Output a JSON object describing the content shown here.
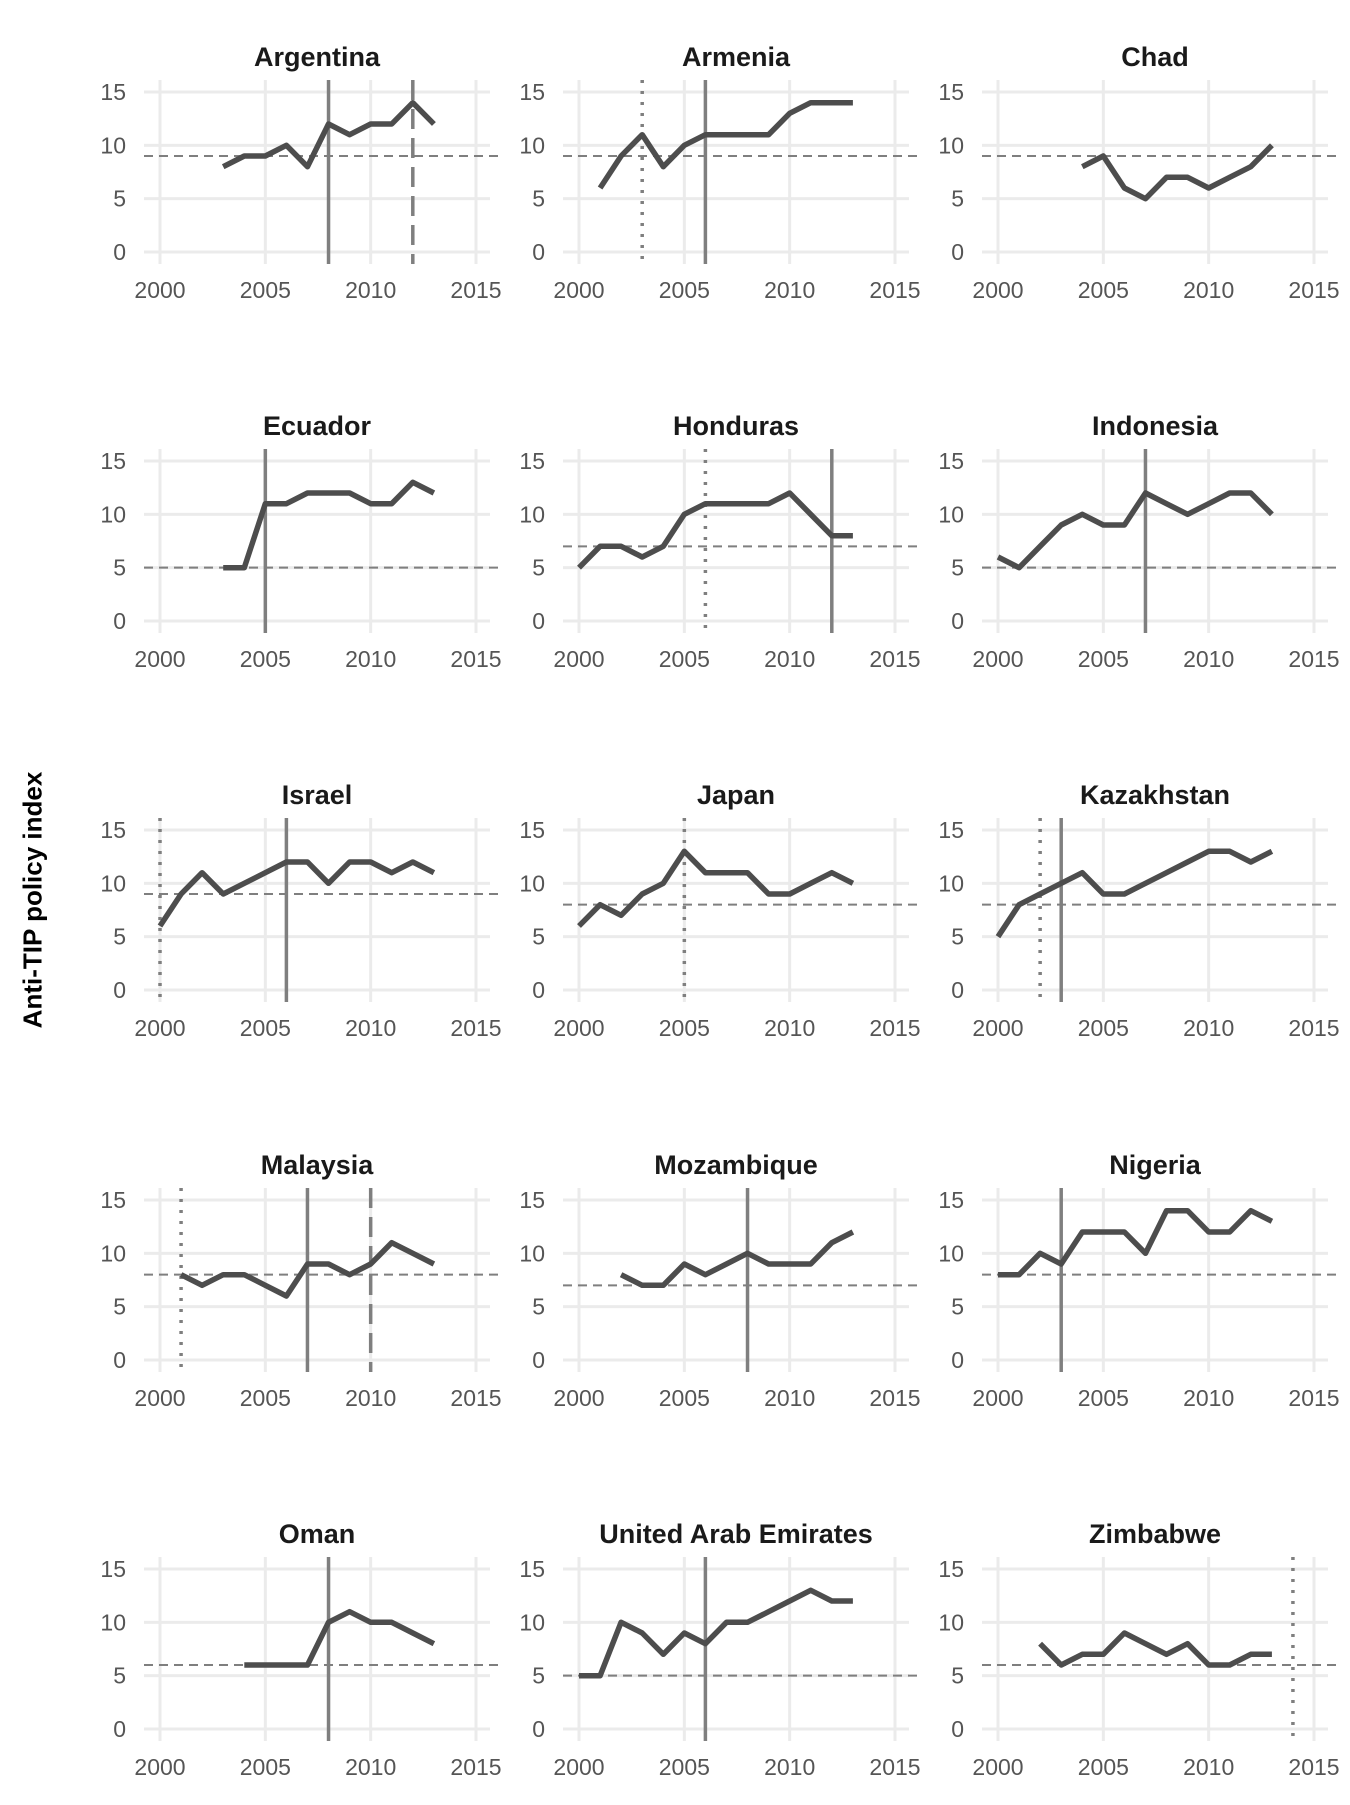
{
  "chart_data": {
    "type": "line",
    "layout": "small-multiples",
    "ylabel": "Anti-TIP policy index",
    "xlim": [
      2000,
      2015
    ],
    "ylim": [
      0,
      15
    ],
    "x_ticks": [
      2000,
      2005,
      2010,
      2015
    ],
    "y_ticks": [
      0,
      5,
      10,
      15
    ],
    "grid": true,
    "colors": {
      "line": "#4d4d4d",
      "reference_line": "#7f7f7f",
      "grid": "#ebebeb",
      "tick_text": "#555555"
    },
    "panels": [
      {
        "name": "Argentina",
        "baseline": 9,
        "x": [
          2003,
          2004,
          2005,
          2006,
          2007,
          2008,
          2009,
          2010,
          2011,
          2012,
          2013
        ],
        "values": [
          8,
          9,
          9,
          10,
          8,
          12,
          11,
          12,
          12,
          14,
          12
        ],
        "events": [
          {
            "year": 2008,
            "style": "solid"
          },
          {
            "year": 2012,
            "style": "dashed"
          }
        ]
      },
      {
        "name": "Armenia",
        "baseline": 9,
        "x": [
          2001,
          2002,
          2003,
          2004,
          2005,
          2006,
          2007,
          2008,
          2009,
          2010,
          2011,
          2012,
          2013
        ],
        "values": [
          6,
          9,
          11,
          8,
          10,
          11,
          11,
          11,
          11,
          13,
          14,
          14,
          14
        ],
        "events": [
          {
            "year": 2003,
            "style": "dotted"
          },
          {
            "year": 2006,
            "style": "solid"
          }
        ]
      },
      {
        "name": "Chad",
        "baseline": 9,
        "x": [
          2004,
          2005,
          2006,
          2007,
          2008,
          2009,
          2010,
          2011,
          2012,
          2013
        ],
        "values": [
          8,
          9,
          6,
          5,
          7,
          7,
          6,
          7,
          8,
          10
        ],
        "events": []
      },
      {
        "name": "Ecuador",
        "baseline": 5,
        "x": [
          2003,
          2004,
          2005,
          2006,
          2007,
          2008,
          2009,
          2010,
          2011,
          2012,
          2013
        ],
        "values": [
          5,
          5,
          11,
          11,
          12,
          12,
          12,
          11,
          11,
          13,
          12
        ],
        "events": [
          {
            "year": 2005,
            "style": "solid"
          }
        ]
      },
      {
        "name": "Honduras",
        "baseline": 7,
        "x": [
          2000,
          2001,
          2002,
          2003,
          2004,
          2005,
          2006,
          2007,
          2008,
          2009,
          2010,
          2011,
          2012,
          2013
        ],
        "values": [
          5,
          7,
          7,
          6,
          7,
          10,
          11,
          11,
          11,
          11,
          12,
          10,
          8,
          8
        ],
        "events": [
          {
            "year": 2006,
            "style": "dotted"
          },
          {
            "year": 2012,
            "style": "solid"
          }
        ]
      },
      {
        "name": "Indonesia",
        "baseline": 5,
        "x": [
          2000,
          2001,
          2002,
          2003,
          2004,
          2005,
          2006,
          2007,
          2008,
          2009,
          2010,
          2011,
          2012,
          2013
        ],
        "values": [
          6,
          5,
          7,
          9,
          10,
          9,
          9,
          12,
          11,
          10,
          11,
          12,
          12,
          10
        ],
        "events": [
          {
            "year": 2007,
            "style": "solid"
          }
        ]
      },
      {
        "name": "Israel",
        "baseline": 9,
        "x": [
          2000,
          2001,
          2002,
          2003,
          2004,
          2005,
          2006,
          2007,
          2008,
          2009,
          2010,
          2011,
          2012,
          2013
        ],
        "values": [
          6,
          9,
          11,
          9,
          10,
          11,
          12,
          12,
          10,
          12,
          12,
          11,
          12,
          11
        ],
        "events": [
          {
            "year": 2000,
            "style": "dotted"
          },
          {
            "year": 2006,
            "style": "solid"
          }
        ]
      },
      {
        "name": "Japan",
        "baseline": 8,
        "x": [
          2000,
          2001,
          2002,
          2003,
          2004,
          2005,
          2006,
          2007,
          2008,
          2009,
          2010,
          2011,
          2012,
          2013
        ],
        "values": [
          6,
          8,
          7,
          9,
          10,
          13,
          11,
          11,
          11,
          9,
          9,
          10,
          11,
          10
        ],
        "events": [
          {
            "year": 2005,
            "style": "dotted"
          }
        ]
      },
      {
        "name": "Kazakhstan",
        "baseline": 8,
        "x": [
          2000,
          2001,
          2002,
          2003,
          2004,
          2005,
          2006,
          2007,
          2008,
          2009,
          2010,
          2011,
          2012,
          2013
        ],
        "values": [
          5,
          8,
          9,
          10,
          11,
          9,
          9,
          10,
          11,
          12,
          13,
          13,
          12,
          13
        ],
        "events": [
          {
            "year": 2002,
            "style": "dotted"
          },
          {
            "year": 2003,
            "style": "solid"
          }
        ]
      },
      {
        "name": "Malaysia",
        "baseline": 8,
        "x": [
          2001,
          2002,
          2003,
          2004,
          2005,
          2006,
          2007,
          2008,
          2009,
          2010,
          2011,
          2012,
          2013
        ],
        "values": [
          8,
          7,
          8,
          8,
          7,
          6,
          9,
          9,
          8,
          9,
          11,
          10,
          9
        ],
        "events": [
          {
            "year": 2001,
            "style": "dotted"
          },
          {
            "year": 2007,
            "style": "solid"
          },
          {
            "year": 2010,
            "style": "dashed"
          }
        ]
      },
      {
        "name": "Mozambique",
        "baseline": 7,
        "x": [
          2002,
          2003,
          2004,
          2005,
          2006,
          2007,
          2008,
          2009,
          2010,
          2011,
          2012,
          2013
        ],
        "values": [
          8,
          7,
          7,
          9,
          8,
          9,
          10,
          9,
          9,
          9,
          11,
          12
        ],
        "events": [
          {
            "year": 2008,
            "style": "solid"
          }
        ]
      },
      {
        "name": "Nigeria",
        "baseline": 8,
        "x": [
          2000,
          2001,
          2002,
          2003,
          2004,
          2005,
          2006,
          2007,
          2008,
          2009,
          2010,
          2011,
          2012,
          2013
        ],
        "values": [
          8,
          8,
          10,
          9,
          12,
          12,
          12,
          10,
          14,
          14,
          12,
          12,
          14,
          13
        ],
        "events": [
          {
            "year": 2003,
            "style": "solid"
          }
        ]
      },
      {
        "name": "Oman",
        "baseline": 6,
        "x": [
          2004,
          2005,
          2006,
          2007,
          2008,
          2009,
          2010,
          2011,
          2012,
          2013
        ],
        "values": [
          6,
          6,
          6,
          6,
          10,
          11,
          10,
          10,
          9,
          8
        ],
        "events": [
          {
            "year": 2008,
            "style": "solid"
          }
        ]
      },
      {
        "name": "United Arab Emirates",
        "baseline": 5,
        "x": [
          2000,
          2001,
          2002,
          2003,
          2004,
          2005,
          2006,
          2007,
          2008,
          2009,
          2010,
          2011,
          2012,
          2013
        ],
        "values": [
          5,
          5,
          10,
          9,
          7,
          9,
          8,
          10,
          10,
          11,
          12,
          13,
          12,
          12
        ],
        "events": [
          {
            "year": 2006,
            "style": "solid"
          }
        ]
      },
      {
        "name": "Zimbabwe",
        "baseline": 6,
        "x": [
          2002,
          2003,
          2004,
          2005,
          2006,
          2007,
          2008,
          2009,
          2010,
          2011,
          2012,
          2013
        ],
        "values": [
          8,
          6,
          7,
          7,
          9,
          8,
          7,
          8,
          6,
          6,
          7,
          7
        ],
        "events": [
          {
            "year": 2014,
            "style": "dotted"
          }
        ]
      }
    ]
  }
}
